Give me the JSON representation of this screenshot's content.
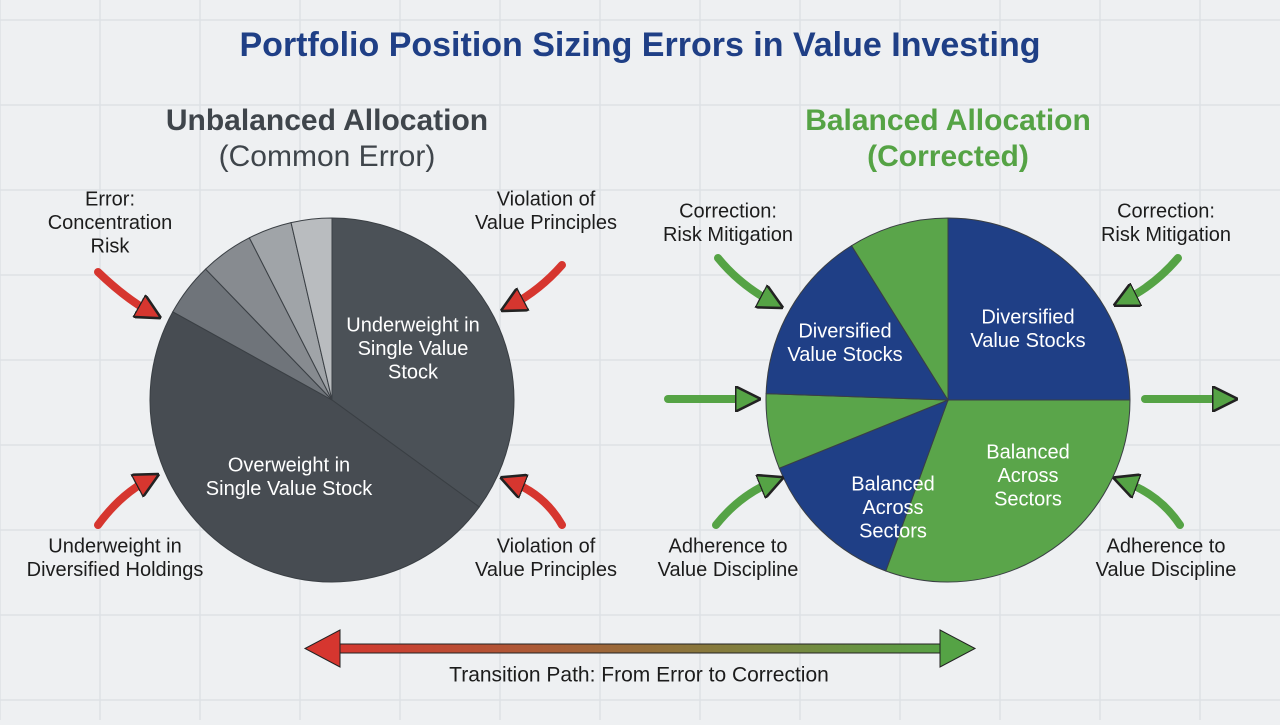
{
  "title": "Portfolio Position Sizing Errors in Value Investing",
  "panels": [
    {
      "title": "Unbalanced Allocation",
      "subtitle": "(Common Error)",
      "slice_labels": [
        [
          "Underweight in",
          "Single Value",
          "Stock"
        ],
        [
          "Overweight in",
          "Single Value Stock"
        ]
      ],
      "callouts": [
        [
          "Error:",
          "Concentration",
          "Risk"
        ],
        [
          "Violation of",
          "Value Principles"
        ],
        [
          "Underweight in",
          "Diversified Holdings"
        ],
        [
          "Violation of",
          "Value Principles"
        ]
      ]
    },
    {
      "title": "Balanced Allocation",
      "subtitle": "(Corrected)",
      "slice_labels": [
        [
          "Diversified",
          "Value Stocks"
        ],
        [
          "Diversified",
          "Value Stocks"
        ],
        [
          "Balanced",
          "Across",
          "Sectors"
        ],
        [
          "Balanced",
          "Across",
          "Sectors"
        ]
      ],
      "callouts": [
        [
          "Correction:",
          "Risk Mitigation"
        ],
        [
          "Correction:",
          "Risk Mitigation"
        ],
        [
          "Adherence to",
          "Value Discipline"
        ],
        [
          "Adherence to",
          "Value Discipline"
        ]
      ]
    }
  ],
  "transition": "Transition Path: From Error to Correction"
}
